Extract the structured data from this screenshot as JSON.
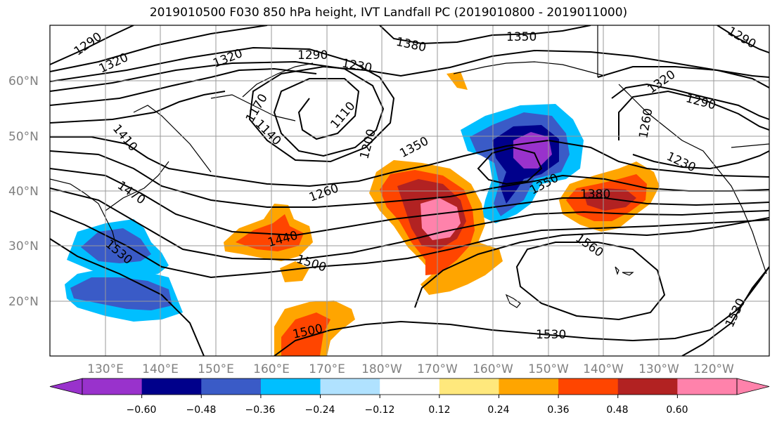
{
  "title": "2019010500 F030 850 hPa height, IVT Landfall PC (2019010800 - 2019011000)",
  "lat_labels": [
    "60°N",
    "50°N",
    "40°N",
    "30°N",
    "20°N"
  ],
  "lon_labels": [
    "130°E",
    "140°E",
    "150°E",
    "160°E",
    "170°E",
    "180°W",
    "170°W",
    "160°W",
    "150°W",
    "140°W",
    "130°W",
    "120°W"
  ],
  "contour_labels": [
    "1290",
    "1320",
    "1320",
    "1290",
    "1230",
    "1380",
    "1350",
    "1290",
    "1320",
    "1290",
    "1170",
    "1140",
    "1110",
    "1200",
    "1350",
    "1260",
    "1260",
    "1230",
    "1410",
    "1470",
    "1440",
    "1530",
    "1500",
    "1350",
    "1380",
    "1560",
    "1530",
    "1500",
    "1530"
  ],
  "colorbar": {
    "tick_labels": [
      "−0.60",
      "−0.48",
      "−0.36",
      "−0.24",
      "−0.12",
      "0.12",
      "0.24",
      "0.36",
      "0.48",
      "0.60"
    ],
    "colors": [
      "#9932cc",
      "#00008b",
      "#3a5bc7",
      "#00bfff",
      "#b0e2ff",
      "#ffffff",
      "#ffe87c",
      "#ffa500",
      "#ff4500",
      "#b22222",
      "#ff82ab"
    ]
  }
}
